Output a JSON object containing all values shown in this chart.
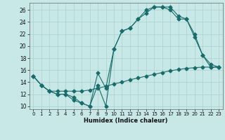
{
  "xlabel": "Humidex (Indice chaleur)",
  "xlim": [
    -0.5,
    23.5
  ],
  "ylim": [
    9.5,
    27.2
  ],
  "yticks": [
    10,
    12,
    14,
    16,
    18,
    20,
    22,
    24,
    26
  ],
  "xticks": [
    0,
    1,
    2,
    3,
    4,
    5,
    6,
    7,
    8,
    9,
    10,
    11,
    12,
    13,
    14,
    15,
    16,
    17,
    18,
    19,
    20,
    21,
    22,
    23
  ],
  "bg_color": "#c8e8e8",
  "grid_color": "#afd4d4",
  "line_color": "#1a6b6b",
  "line1_y": [
    15,
    13.5,
    12.5,
    12,
    12,
    11,
    10.5,
    10,
    13.5,
    10,
    19.5,
    22.5,
    23,
    24.5,
    26,
    26.5,
    26.5,
    26.5,
    25,
    24.5,
    22,
    18.5,
    17,
    16.5
  ],
  "line2_y": [
    15,
    13.5,
    12.5,
    12,
    12,
    11.5,
    10.5,
    10,
    15.5,
    13,
    19.5,
    22.5,
    23,
    24.5,
    25.5,
    26.5,
    26.5,
    26,
    24.5,
    24.5,
    21.5,
    18.5,
    16.5,
    16.5
  ],
  "line3_y": [
    15,
    13.5,
    12.5,
    12.5,
    12.5,
    12.5,
    12.5,
    12.7,
    13.0,
    13.3,
    13.7,
    14.0,
    14.4,
    14.7,
    15.0,
    15.3,
    15.6,
    15.9,
    16.1,
    16.3,
    16.4,
    16.5,
    16.5,
    16.5
  ]
}
